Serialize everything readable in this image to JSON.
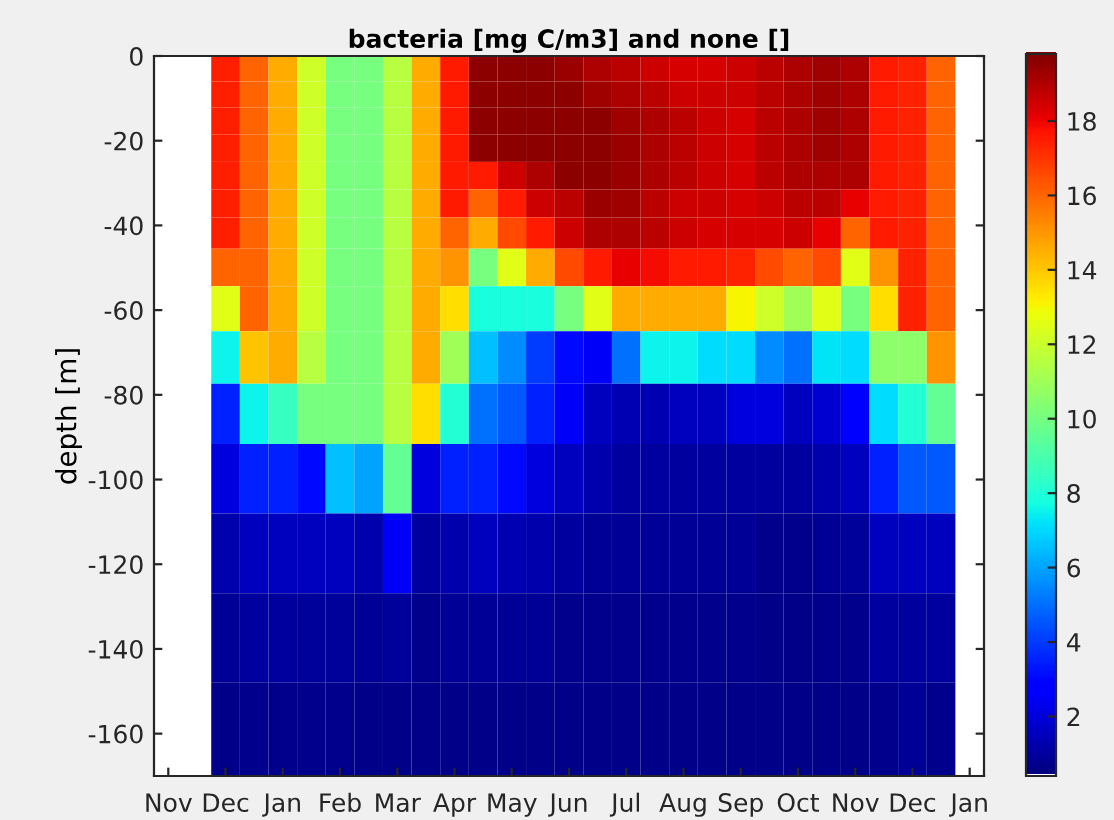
{
  "chart_data": {
    "type": "heatmap",
    "title": "bacteria [mg C/m3] and none []",
    "ylabel": "depth [m]",
    "categories": [
      "Nov",
      null,
      "Dec",
      null,
      "Jan",
      null,
      "Feb",
      null,
      "Mar",
      null,
      "Apr",
      null,
      "May",
      null,
      "Jun",
      null,
      "Jul",
      null,
      "Aug",
      null,
      "Sep",
      null,
      "Oct",
      null,
      "Nov",
      null,
      "Dec",
      null,
      "Jan"
    ],
    "y": [
      -3,
      -9,
      -15.25,
      -21.75,
      -28.25,
      -34.75,
      -41.5,
      -49.5,
      -59.25,
      -70.75,
      -84,
      -99.25,
      -116.75,
      -137,
      -159
    ],
    "ylim": [
      -170,
      0
    ],
    "yticks": [
      0,
      -20,
      -40,
      -60,
      -80,
      -100,
      -120,
      -140,
      -160
    ],
    "clim": [
      0.4,
      19.8
    ],
    "cticks": [
      2,
      4,
      6,
      8,
      10,
      12,
      14,
      16,
      18
    ],
    "cells": [
      [
        null,
        null,
        17.4,
        16,
        14.5,
        12,
        10,
        10,
        11.5,
        14.5,
        17.5,
        19.5,
        19.5,
        19.5,
        19.3,
        19,
        18.8,
        18.5,
        18.3,
        18.3,
        18.5,
        18.8,
        19,
        19.2,
        19,
        17.5,
        17.3,
        16,
        null
      ],
      [
        null,
        null,
        17.4,
        16,
        14.5,
        12,
        10,
        10,
        11.5,
        14.5,
        17.5,
        19.5,
        19.5,
        19.5,
        19.5,
        19.2,
        19,
        18.8,
        18.5,
        18.5,
        18.5,
        18.8,
        19,
        19.2,
        19,
        17.5,
        17.3,
        16,
        null
      ],
      [
        null,
        null,
        17.4,
        16,
        14.5,
        12,
        10,
        10,
        11.5,
        14.5,
        17.5,
        19.5,
        19.5,
        19.5,
        19.5,
        19.5,
        19.2,
        19,
        18.8,
        18.5,
        18.3,
        18.8,
        19,
        19.2,
        19,
        17.5,
        17.3,
        16,
        null
      ],
      [
        null,
        null,
        17.4,
        16,
        14.5,
        12,
        10,
        10,
        11.5,
        14.5,
        17.5,
        19.5,
        19.5,
        19.5,
        19.5,
        19.5,
        19.3,
        19,
        18.8,
        18.5,
        18.3,
        18.8,
        19,
        19.2,
        19,
        17.5,
        17.3,
        16,
        null
      ],
      [
        null,
        null,
        17.4,
        16,
        14.5,
        12,
        10,
        10,
        11.5,
        14.5,
        17.5,
        17.5,
        18.5,
        19,
        19.5,
        19.5,
        19.3,
        19,
        18.8,
        18.5,
        18.3,
        18.8,
        19,
        19,
        19,
        17.5,
        17.3,
        16,
        null
      ],
      [
        null,
        null,
        17.4,
        16,
        14.5,
        12,
        10,
        10,
        11.5,
        14.5,
        17.5,
        16,
        17.5,
        18.5,
        18.8,
        19.3,
        19.2,
        18.8,
        18.5,
        18.5,
        18.3,
        18.5,
        18.8,
        18.8,
        18,
        17.5,
        17.3,
        16,
        null
      ],
      [
        null,
        null,
        17.4,
        16,
        14.5,
        12,
        10,
        10,
        11.5,
        14.5,
        16,
        14.5,
        16.5,
        17.5,
        18.5,
        19,
        19,
        18.8,
        18.5,
        18.3,
        18.3,
        18.3,
        18.5,
        18,
        16,
        17.5,
        17.3,
        16,
        null
      ],
      [
        null,
        null,
        16,
        16,
        14.5,
        12,
        10,
        10,
        11.5,
        14.5,
        15,
        10,
        12.5,
        14.5,
        16.5,
        17.5,
        18,
        17.8,
        17.5,
        17.5,
        17.3,
        16.5,
        16,
        16.5,
        12.5,
        15,
        17.3,
        16,
        null
      ],
      [
        null,
        null,
        12.5,
        16,
        14.5,
        12,
        10,
        10,
        11.5,
        14.5,
        13.5,
        7.8,
        7.8,
        7.8,
        10,
        12.5,
        14.5,
        14.5,
        14.5,
        14.5,
        13,
        12,
        11,
        12.5,
        10,
        13.5,
        17.3,
        16,
        null
      ],
      [
        null,
        null,
        7.5,
        14,
        14.5,
        11.5,
        10,
        10,
        11.5,
        14.5,
        11,
        6.5,
        5.5,
        4,
        3,
        2.5,
        5,
        7.5,
        7.5,
        7,
        7,
        5.5,
        5,
        7.2,
        7,
        10.5,
        10.5,
        15,
        null
      ],
      [
        null,
        null,
        3.5,
        7.5,
        8.5,
        10,
        10,
        10,
        11.5,
        13.5,
        8,
        5,
        4.5,
        3.5,
        2.5,
        1.5,
        1.3,
        1.3,
        1.5,
        1.5,
        2,
        2,
        1.5,
        1.8,
        2.8,
        7,
        8,
        9.5,
        null
      ],
      [
        null,
        null,
        2,
        3.5,
        3.5,
        3,
        6.5,
        6,
        9.5,
        2,
        3.5,
        3.5,
        3,
        2,
        1.5,
        1.2,
        1,
        1,
        1,
        1,
        1,
        1,
        1,
        1.2,
        1.5,
        3.5,
        4.5,
        4.5,
        null
      ],
      [
        null,
        null,
        1.2,
        1.5,
        1.5,
        1.5,
        1.5,
        1.2,
        2.5,
        1,
        1.2,
        1.5,
        1.3,
        1.2,
        1,
        0.8,
        0.8,
        0.8,
        0.8,
        0.8,
        0.8,
        0.7,
        0.7,
        0.8,
        0.9,
        1.5,
        1.5,
        1.5,
        null
      ],
      [
        null,
        null,
        0.8,
        1,
        1,
        0.9,
        0.9,
        0.8,
        0.9,
        0.7,
        0.8,
        0.8,
        0.8,
        0.8,
        0.7,
        0.7,
        0.7,
        0.7,
        0.7,
        0.7,
        0.7,
        0.6,
        0.6,
        0.7,
        0.7,
        1,
        1,
        1,
        null
      ],
      [
        null,
        null,
        0.6,
        0.7,
        0.7,
        0.7,
        0.7,
        0.6,
        0.6,
        0.6,
        0.6,
        0.6,
        0.6,
        0.6,
        0.6,
        0.6,
        0.6,
        0.6,
        0.6,
        0.6,
        0.6,
        0.6,
        0.6,
        0.6,
        0.6,
        0.7,
        0.8,
        0.7,
        null
      ]
    ]
  }
}
